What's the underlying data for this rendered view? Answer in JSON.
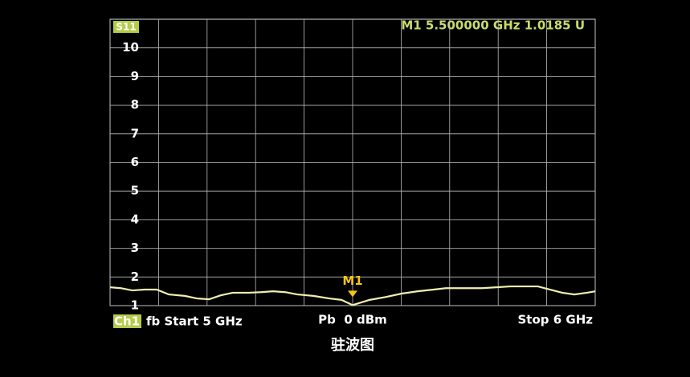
{
  "chart_data": {
    "type": "line",
    "title": "驻波图",
    "trace_label": "S11",
    "readout": "M1 5.500000 GHz 1.0185 U",
    "channel": "Ch1",
    "start_label": "fb Start 5 GHz",
    "power_label": "Pb  0 dBm",
    "stop_label": "Stop 6 GHz",
    "x": [
      5.0,
      5.022,
      5.046,
      5.071,
      5.096,
      5.121,
      5.154,
      5.179,
      5.204,
      5.228,
      5.253,
      5.286,
      5.311,
      5.336,
      5.361,
      5.386,
      5.419,
      5.452,
      5.477,
      5.5,
      5.535,
      5.568,
      5.601,
      5.634,
      5.667,
      5.692,
      5.717,
      5.767,
      5.825,
      5.849,
      5.882,
      5.907,
      5.932,
      5.957,
      5.983,
      6.0
    ],
    "series": [
      {
        "name": "S11",
        "color": "#f2eeb0",
        "values": [
          1.64,
          1.61,
          1.53,
          1.56,
          1.56,
          1.39,
          1.34,
          1.25,
          1.22,
          1.36,
          1.45,
          1.45,
          1.47,
          1.5,
          1.47,
          1.39,
          1.34,
          1.25,
          1.2,
          1.0185,
          1.2,
          1.3,
          1.42,
          1.5,
          1.56,
          1.61,
          1.61,
          1.61,
          1.67,
          1.67,
          1.67,
          1.56,
          1.45,
          1.39,
          1.45,
          1.5
        ]
      }
    ],
    "marker": {
      "name": "M1",
      "index": 19,
      "color": "#f5c518"
    },
    "xlim": [
      5,
      6
    ],
    "xticks": [
      5,
      5.1,
      5.2,
      5.3,
      5.4,
      5.5,
      5.6,
      5.7,
      5.8,
      5.9,
      6
    ],
    "ylim": [
      1,
      11
    ],
    "yticks": [
      1,
      2,
      3,
      4,
      5,
      6,
      7,
      8,
      9,
      10
    ],
    "grid": true
  }
}
